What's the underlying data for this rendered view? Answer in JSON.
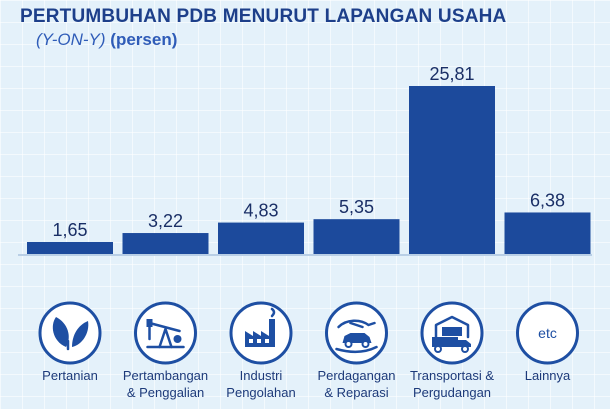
{
  "chart_data": {
    "type": "bar",
    "title": "PERTUMBUHAN PDB MENURUT LAPANGAN USAHA",
    "subtitle_italic": "(Y-ON-Y)",
    "subtitle_rest": "(persen)",
    "categories": [
      [
        "Pertanian"
      ],
      [
        "Pertambangan",
        "& Penggalian"
      ],
      [
        "Industri",
        "Pengolahan"
      ],
      [
        "Perdagangan",
        "& Reparasi"
      ],
      [
        "Transportasi &",
        "Pergudangan"
      ],
      [
        "Lainnya"
      ]
    ],
    "values": [
      1.65,
      3.22,
      4.83,
      5.35,
      25.81,
      6.38
    ],
    "value_labels": [
      "1,65",
      "3,22",
      "4,83",
      "5,35",
      "25,81",
      "6,38"
    ],
    "icons": [
      "leaf-icon",
      "oil-pump-icon",
      "factory-icon",
      "handshake-car-icon",
      "truck-warehouse-icon",
      "etc-icon"
    ],
    "etc_text": "etc",
    "bar_color": "#1c4a9c",
    "icon_color": "#1e4fa3",
    "xlabel": "",
    "ylabel": ""
  }
}
